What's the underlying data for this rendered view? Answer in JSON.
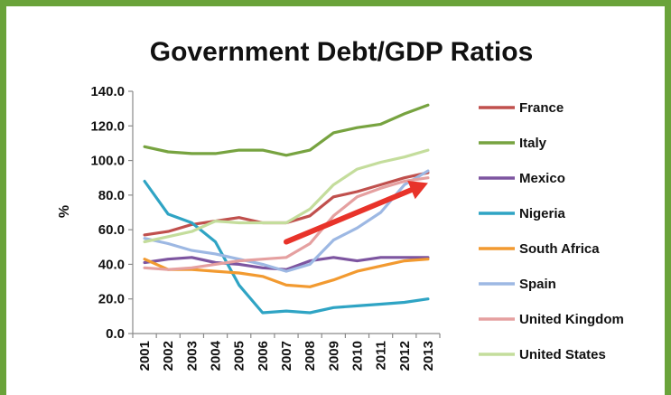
{
  "chart_data": {
    "type": "line",
    "title": "Government Debt/GDP Ratios",
    "xlabel": "",
    "ylabel": "%",
    "ylim": [
      0,
      140
    ],
    "y_ticks": [
      "0.0",
      "20.0",
      "40.0",
      "60.0",
      "80.0",
      "100.0",
      "120.0",
      "140.0"
    ],
    "x": [
      "2001",
      "2002",
      "2003",
      "2004",
      "2005",
      "2006",
      "2007",
      "2008",
      "2009",
      "2010",
      "2011",
      "2012",
      "2013"
    ],
    "grid": false,
    "legend_position": "right",
    "series": [
      {
        "name": "France",
        "color": "#c0504d",
        "values": [
          57,
          59,
          63,
          65,
          67,
          64,
          64,
          68,
          79,
          82,
          86,
          90,
          93
        ]
      },
      {
        "name": "Italy",
        "color": "#77a340",
        "values": [
          108,
          105,
          104,
          104,
          106,
          106,
          103,
          106,
          116,
          119,
          121,
          127,
          132
        ]
      },
      {
        "name": "Mexico",
        "color": "#7d55a0",
        "values": [
          41,
          43,
          44,
          41,
          40,
          38,
          37,
          42,
          44,
          42,
          44,
          44,
          44
        ]
      },
      {
        "name": "Nigeria",
        "color": "#2fa4c4",
        "values": [
          88,
          69,
          64,
          53,
          28,
          12,
          13,
          12,
          15,
          16,
          17,
          18,
          20
        ]
      },
      {
        "name": "South Africa",
        "color": "#f29a30",
        "values": [
          43,
          37,
          37,
          36,
          35,
          33,
          28,
          27,
          31,
          36,
          39,
          42,
          43
        ]
      },
      {
        "name": "Spain",
        "color": "#9db8e3",
        "values": [
          55,
          52,
          48,
          46,
          43,
          40,
          36,
          40,
          54,
          61,
          70,
          86,
          94
        ]
      },
      {
        "name": "United Kingdom",
        "color": "#e5a0a0",
        "values": [
          38,
          37,
          38,
          40,
          42,
          43,
          44,
          52,
          68,
          79,
          84,
          88,
          90
        ]
      },
      {
        "name": "United States",
        "color": "#c4dd9c",
        "values": [
          53,
          56,
          59,
          65,
          64,
          64,
          64,
          72,
          86,
          95,
          99,
          102,
          106
        ]
      }
    ],
    "annotations": [
      {
        "type": "arrow",
        "color": "#e8332a",
        "from": {
          "x": "2007",
          "y": 53
        },
        "to": {
          "x": "2013",
          "y": 87
        }
      }
    ]
  }
}
